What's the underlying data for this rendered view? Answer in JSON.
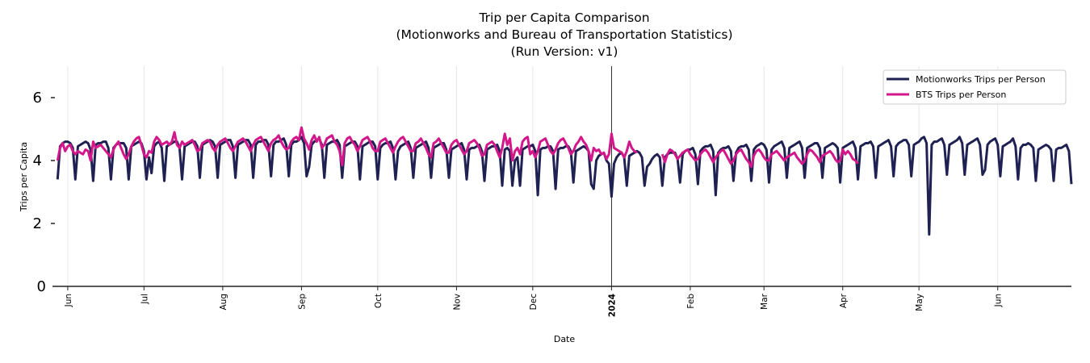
{
  "chart_data": {
    "type": "line",
    "title_lines": [
      "Trip per Capita Comparison",
      "(Motionworks and Bureau of Transportation Statistics)",
      "(Run Version: v1)"
    ],
    "xlabel": "Date",
    "ylabel": "Trips per Capita",
    "xlim": [
      "2023-05-26",
      "2024-06-30"
    ],
    "ylim": [
      0,
      7
    ],
    "yticks": [
      0,
      2,
      4,
      6
    ],
    "xticks": [
      {
        "date": "2023-06-01",
        "label": "Jun"
      },
      {
        "date": "2023-07-01",
        "label": "Jul"
      },
      {
        "date": "2023-08-01",
        "label": "Aug"
      },
      {
        "date": "2023-09-01",
        "label": "Sep"
      },
      {
        "date": "2023-10-01",
        "label": "Oct"
      },
      {
        "date": "2023-11-01",
        "label": "Nov"
      },
      {
        "date": "2023-12-01",
        "label": "Dec"
      },
      {
        "date": "2024-01-01",
        "label": "2024",
        "bold": true
      },
      {
        "date": "2024-02-01",
        "label": "Feb"
      },
      {
        "date": "2024-03-01",
        "label": "Mar"
      },
      {
        "date": "2024-04-01",
        "label": "Apr"
      },
      {
        "date": "2024-05-01",
        "label": "May"
      },
      {
        "date": "2024-06-01",
        "label": "Jun"
      }
    ],
    "vertical_marker": "2024-01-01",
    "grid": "vertical at month ticks",
    "legend_placement": "top-right",
    "series": [
      {
        "name": "Motionworks Trips per Person",
        "color": "#1f2152",
        "weekly_values_sun_to_sat": {
          "2023-05-28": [
            3.4,
            4.45,
            4.55,
            4.6,
            4.6,
            4.55,
            4.4
          ],
          "2023-06-04": [
            3.4,
            4.45,
            4.5,
            4.55,
            4.6,
            4.55,
            4.35
          ],
          "2023-06-11": [
            3.35,
            4.5,
            4.55,
            4.55,
            4.6,
            4.6,
            4.4
          ],
          "2023-06-18": [
            3.4,
            4.4,
            4.5,
            4.55,
            4.55,
            4.55,
            4.4
          ],
          "2023-06-25": [
            3.4,
            4.45,
            4.5,
            4.55,
            4.6,
            4.55,
            4.3
          ],
          "2023-07-02": [
            3.4,
            4.1,
            3.6,
            4.45,
            4.55,
            4.6,
            4.4
          ],
          "2023-07-09": [
            3.35,
            4.45,
            4.5,
            4.55,
            4.6,
            4.6,
            4.4
          ],
          "2023-07-16": [
            3.4,
            4.45,
            4.5,
            4.55,
            4.6,
            4.6,
            4.45
          ],
          "2023-07-23": [
            3.45,
            4.5,
            4.55,
            4.6,
            4.65,
            4.6,
            4.45
          ],
          "2023-07-30": [
            3.45,
            4.5,
            4.55,
            4.6,
            4.65,
            4.65,
            4.45
          ],
          "2023-08-06": [
            3.45,
            4.5,
            4.55,
            4.6,
            4.65,
            4.65,
            4.5
          ],
          "2023-08-13": [
            3.45,
            4.5,
            4.6,
            4.6,
            4.65,
            4.65,
            4.5
          ],
          "2023-08-20": [
            3.5,
            4.5,
            4.6,
            4.6,
            4.65,
            4.7,
            4.5
          ],
          "2023-08-27": [
            3.5,
            4.5,
            4.6,
            4.6,
            4.65,
            4.75,
            4.55
          ],
          "2023-09-03": [
            3.5,
            3.8,
            4.5,
            4.6,
            4.65,
            4.7,
            4.5
          ],
          "2023-09-10": [
            3.45,
            4.5,
            4.55,
            4.6,
            4.6,
            4.65,
            4.5
          ],
          "2023-09-17": [
            3.45,
            4.45,
            4.5,
            4.55,
            4.6,
            4.6,
            4.45
          ],
          "2023-09-24": [
            3.4,
            4.45,
            4.5,
            4.55,
            4.6,
            4.6,
            4.45
          ],
          "2023-10-01": [
            3.4,
            4.4,
            4.5,
            4.55,
            4.55,
            4.6,
            4.4
          ],
          "2023-10-08": [
            3.4,
            4.3,
            4.45,
            4.5,
            4.55,
            4.6,
            4.4
          ],
          "2023-10-15": [
            3.45,
            4.4,
            4.45,
            4.5,
            4.55,
            4.6,
            4.4
          ],
          "2023-10-22": [
            3.45,
            4.4,
            4.45,
            4.5,
            4.55,
            4.55,
            4.35
          ],
          "2023-10-29": [
            3.45,
            4.35,
            4.4,
            4.45,
            4.5,
            4.55,
            4.35
          ],
          "2023-11-05": [
            3.4,
            4.35,
            4.4,
            4.4,
            4.45,
            4.5,
            4.3
          ],
          "2023-11-12": [
            3.35,
            4.35,
            4.4,
            4.45,
            4.45,
            4.5,
            4.3
          ],
          "2023-11-19": [
            3.2,
            4.35,
            4.4,
            4.3,
            3.2,
            4.0,
            4.1
          ],
          "2023-11-26": [
            3.2,
            4.35,
            4.4,
            4.45,
            4.45,
            4.5,
            4.3
          ],
          "2023-12-03": [
            2.9,
            4.35,
            4.4,
            4.4,
            4.45,
            4.45,
            4.3
          ],
          "2023-12-10": [
            3.1,
            4.35,
            4.4,
            4.4,
            4.45,
            4.45,
            4.3
          ],
          "2023-12-17": [
            3.3,
            4.3,
            4.35,
            4.4,
            4.45,
            4.4,
            4.3
          ],
          "2023-12-24": [
            3.25,
            3.1,
            4.0,
            4.15,
            4.2,
            4.25,
            4.0
          ],
          "2023-12-31": [
            3.9,
            2.85,
            3.9,
            4.1,
            4.2,
            4.25,
            4.1
          ],
          "2024-01-07": [
            3.2,
            4.15,
            4.2,
            4.25,
            4.3,
            4.25,
            4.1
          ],
          "2024-01-14": [
            3.2,
            3.8,
            3.9,
            4.05,
            4.15,
            4.2,
            4.1
          ],
          "2024-01-21": [
            3.2,
            4.1,
            4.2,
            4.25,
            4.25,
            4.25,
            4.05
          ],
          "2024-01-28": [
            3.3,
            4.2,
            4.3,
            4.35,
            4.35,
            4.4,
            4.2
          ],
          "2024-02-04": [
            3.25,
            4.3,
            4.4,
            4.45,
            4.45,
            4.5,
            4.3
          ],
          "2024-02-11": [
            2.9,
            4.25,
            4.35,
            4.4,
            4.4,
            4.45,
            4.3
          ],
          "2024-02-18": [
            3.35,
            4.25,
            4.4,
            4.45,
            4.45,
            4.5,
            4.35
          ],
          "2024-02-25": [
            3.35,
            4.35,
            4.45,
            4.5,
            4.55,
            4.5,
            4.35
          ],
          "2024-03-03": [
            3.3,
            4.35,
            4.45,
            4.5,
            4.55,
            4.6,
            4.4
          ],
          "2024-03-10": [
            3.45,
            4.4,
            4.45,
            4.5,
            4.55,
            4.6,
            4.4
          ],
          "2024-03-17": [
            3.45,
            4.4,
            4.45,
            4.5,
            4.55,
            4.55,
            4.4
          ],
          "2024-03-24": [
            3.45,
            4.4,
            4.45,
            4.5,
            4.55,
            4.5,
            4.4
          ],
          "2024-03-31": [
            3.3,
            4.4,
            4.45,
            4.5,
            4.55,
            4.6,
            4.4
          ],
          "2024-04-07": [
            3.4,
            4.45,
            4.5,
            4.55,
            4.55,
            4.6,
            4.45
          ],
          "2024-04-14": [
            3.45,
            4.45,
            4.5,
            4.55,
            4.6,
            4.65,
            4.45
          ],
          "2024-04-21": [
            3.5,
            4.45,
            4.55,
            4.6,
            4.65,
            4.65,
            4.5
          ],
          "2024-04-28": [
            3.5,
            4.5,
            4.55,
            4.6,
            4.7,
            4.75,
            4.55
          ],
          "2024-05-05": [
            1.65,
            4.5,
            4.6,
            4.6,
            4.65,
            4.7,
            4.5
          ],
          "2024-05-12": [
            3.55,
            4.5,
            4.55,
            4.6,
            4.65,
            4.75,
            4.55
          ],
          "2024-05-19": [
            3.55,
            4.5,
            4.55,
            4.6,
            4.65,
            4.7,
            4.5
          ],
          "2024-05-26": [
            3.55,
            3.7,
            4.5,
            4.6,
            4.65,
            4.7,
            4.5
          ],
          "2024-06-02": [
            3.5,
            4.45,
            4.5,
            4.55,
            4.6,
            4.7,
            4.45
          ],
          "2024-06-09": [
            3.4,
            4.4,
            4.5,
            4.5,
            4.55,
            4.5,
            4.4
          ],
          "2024-06-16": [
            3.35,
            4.35,
            4.4,
            4.45,
            4.5,
            4.45,
            4.35
          ],
          "2024-06-23": [
            3.35,
            4.35,
            4.4,
            4.4,
            4.45,
            4.5,
            4.3
          ],
          "2024-06-30": [
            3.25
          ]
        }
      },
      {
        "name": "BTS Trips per Person",
        "color": "#d3168a",
        "weekly_values_sun_to_sat": {
          "2023-05-28": [
            4.0,
            4.4,
            4.55,
            4.3,
            4.45,
            4.5,
            4.3
          ],
          "2023-06-04": [
            4.2,
            4.3,
            4.25,
            4.2,
            4.35,
            4.3,
            4.0
          ],
          "2023-06-11": [
            4.6,
            4.4,
            4.45,
            4.5,
            4.4,
            4.3,
            4.2
          ],
          "2023-06-18": [
            4.1,
            4.35,
            4.5,
            4.6,
            4.4,
            4.2,
            4.05
          ],
          "2023-06-25": [
            4.2,
            4.45,
            4.6,
            4.7,
            4.75,
            4.5,
            4.2
          ],
          "2023-07-02": [
            4.1,
            4.3,
            4.25,
            4.6,
            4.75,
            4.65,
            4.5
          ],
          "2023-07-09": [
            4.55,
            4.6,
            4.5,
            4.6,
            4.9,
            4.5,
            4.4
          ],
          "2023-07-16": [
            4.6,
            4.5,
            4.55,
            4.6,
            4.65,
            4.5,
            4.3
          ],
          "2023-07-23": [
            4.35,
            4.55,
            4.6,
            4.65,
            4.6,
            4.4,
            4.3
          ],
          "2023-07-30": [
            4.5,
            4.6,
            4.65,
            4.7,
            4.55,
            4.4,
            4.3
          ],
          "2023-08-06": [
            4.45,
            4.6,
            4.65,
            4.7,
            4.6,
            4.45,
            4.3
          ],
          "2023-08-13": [
            4.5,
            4.65,
            4.7,
            4.75,
            4.6,
            4.45,
            4.3
          ],
          "2023-08-20": [
            4.55,
            4.65,
            4.7,
            4.8,
            4.6,
            4.45,
            4.35
          ],
          "2023-08-27": [
            4.4,
            4.6,
            4.7,
            4.75,
            4.65,
            5.05,
            4.7
          ],
          "2023-09-03": [
            4.55,
            4.35,
            4.65,
            4.8,
            4.6,
            4.75,
            4.4
          ],
          "2023-09-10": [
            4.5,
            4.7,
            4.75,
            4.8,
            4.6,
            4.5,
            4.3
          ],
          "2023-09-17": [
            3.85,
            4.55,
            4.7,
            4.75,
            4.6,
            4.5,
            4.3
          ],
          "2023-09-24": [
            4.45,
            4.65,
            4.7,
            4.75,
            4.6,
            4.4,
            4.3
          ],
          "2023-10-01": [
            4.3,
            4.6,
            4.65,
            4.7,
            4.55,
            4.4,
            4.25
          ],
          "2023-10-08": [
            4.45,
            4.6,
            4.7,
            4.75,
            4.6,
            4.45,
            4.3
          ],
          "2023-10-15": [
            4.3,
            4.55,
            4.6,
            4.7,
            4.55,
            4.4,
            4.2
          ],
          "2023-10-22": [
            4.1,
            4.55,
            4.6,
            4.7,
            4.55,
            4.4,
            4.25
          ],
          "2023-10-29": [
            4.25,
            4.5,
            4.6,
            4.65,
            4.5,
            4.35,
            4.2
          ],
          "2023-11-05": [
            4.3,
            4.55,
            4.6,
            4.65,
            4.55,
            4.4,
            4.15
          ],
          "2023-11-12": [
            4.2,
            4.5,
            4.55,
            4.6,
            4.5,
            4.3,
            4.1
          ],
          "2023-11-19": [
            4.4,
            4.85,
            4.5,
            4.7,
            4.0,
            4.3,
            4.4
          ],
          "2023-11-26": [
            4.2,
            4.6,
            4.7,
            4.75,
            4.2,
            4.3,
            4.1
          ],
          "2023-12-03": [
            4.3,
            4.6,
            4.65,
            4.7,
            4.5,
            4.3,
            4.2
          ],
          "2023-12-10": [
            4.35,
            4.55,
            4.65,
            4.7,
            4.55,
            4.4,
            4.2
          ],
          "2023-12-17": [
            4.3,
            4.5,
            4.6,
            4.75,
            4.6,
            4.5,
            4.3
          ],
          "2023-12-24": [
            4.0,
            4.4,
            4.3,
            4.35,
            4.2,
            4.25,
            4.05
          ],
          "2023-12-31": [
            4.2,
            4.85,
            4.4,
            4.35,
            4.3,
            4.25,
            4.1
          ],
          "2024-01-07": [
            4.3,
            4.6,
            4.4,
            4.3,
            4.25,
            null,
            null
          ],
          "2024-01-14": [
            null,
            null,
            null,
            null,
            null,
            null,
            null
          ],
          "2024-01-21": [
            4.2,
            3.95,
            4.2,
            4.35,
            4.3,
            4.2,
            4.05
          ],
          "2024-01-28": [
            4.15,
            4.25,
            4.3,
            4.35,
            4.2,
            4.1,
            4.0
          ],
          "2024-02-04": [
            4.05,
            4.2,
            4.3,
            4.35,
            4.25,
            4.1,
            3.95
          ],
          "2024-02-11": [
            4.1,
            4.2,
            4.3,
            4.35,
            4.2,
            4.05,
            3.9
          ],
          "2024-02-18": [
            4.0,
            4.2,
            4.3,
            4.35,
            4.2,
            4.05,
            3.95
          ],
          "2024-02-25": [
            3.8,
            4.15,
            4.3,
            4.35,
            4.25,
            4.1,
            4.0
          ],
          "2024-03-03": [
            4.0,
            4.2,
            4.25,
            4.3,
            4.2,
            4.1,
            4.0
          ],
          "2024-03-10": [
            4.1,
            4.15,
            4.2,
            4.25,
            4.1,
            4.0,
            3.9
          ],
          "2024-03-17": [
            4.0,
            4.2,
            4.35,
            4.3,
            4.2,
            4.1,
            3.95
          ],
          "2024-03-24": [
            4.15,
            4.2,
            4.25,
            4.3,
            4.2,
            4.05,
            3.95
          ],
          "2024-03-31": [
            4.0,
            4.35,
            4.2,
            4.3,
            4.2,
            4.05,
            4.0
          ],
          "2024-04-07": [
            3.9
          ]
        }
      }
    ]
  }
}
